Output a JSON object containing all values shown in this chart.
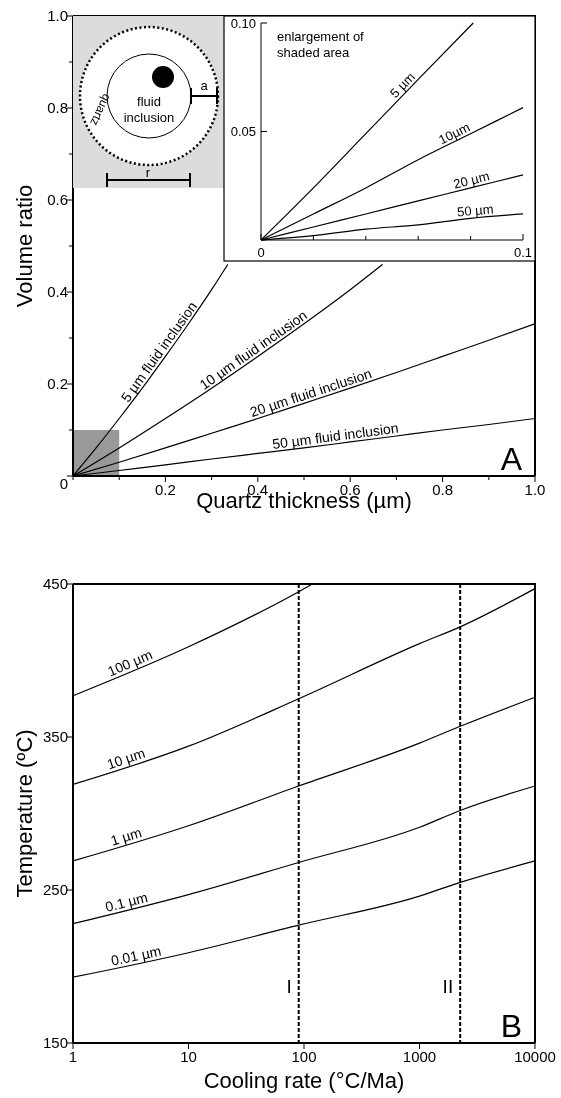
{
  "chart_data": [
    {
      "type": "line",
      "xlabel": "Quartz thickness (µm)",
      "ylabel": "Volume ratio",
      "xlim": [
        0,
        1
      ],
      "ylim": [
        0,
        1
      ],
      "xticks": [
        {
          "value": 0,
          "label": null
        },
        {
          "value": 0.1,
          "label": null
        },
        {
          "value": 0.2,
          "label": "0.2"
        },
        {
          "value": 0.3,
          "label": null
        },
        {
          "value": 0.4,
          "label": "0.4"
        },
        {
          "value": 0.5,
          "label": null
        },
        {
          "value": 0.6,
          "label": "0.6"
        },
        {
          "value": 0.7,
          "label": null
        },
        {
          "value": 0.8,
          "label": "0.8"
        },
        {
          "value": 0.9,
          "label": null
        },
        {
          "value": 1,
          "label": "1.0"
        }
      ],
      "yticks": [
        {
          "value": 0,
          "label": "0"
        },
        {
          "value": 0.1,
          "label": null
        },
        {
          "value": 0.2,
          "label": "0.2"
        },
        {
          "value": 0.3,
          "label": null
        },
        {
          "value": 0.4,
          "label": "0.4"
        },
        {
          "value": 0.5,
          "label": null
        },
        {
          "value": 0.6,
          "label": "0.6"
        },
        {
          "value": 0.7,
          "label": null
        },
        {
          "value": 0.8,
          "label": "0.8"
        },
        {
          "value": 0.9,
          "label": null
        },
        {
          "value": 1,
          "label": "1.0"
        }
      ],
      "annotations": [
        "A",
        "fluid inclusion",
        "quartz",
        "a",
        "r"
      ],
      "series": [
        {
          "type": "area",
          "color": "#999999",
          "x": [
            0,
            0.1
          ],
          "values": [
            0.1,
            0.1
          ]
        },
        {
          "name": "5 µm fluid inclusion",
          "color": "#000000",
          "x": [
            0,
            0.05,
            0.1,
            0.15,
            0.2,
            0.25,
            0.3,
            0.335
          ],
          "values": [
            0,
            0.061,
            0.125,
            0.191,
            0.26,
            0.331,
            0.405,
            0.46
          ]
        },
        {
          "name": "10 µm fluid inclusion",
          "color": "#000000",
          "x": [
            0,
            0.1,
            0.2,
            0.3,
            0.4,
            0.5,
            0.6,
            0.67
          ],
          "values": [
            0,
            0.061,
            0.125,
            0.191,
            0.26,
            0.331,
            0.405,
            0.46
          ]
        },
        {
          "name": "20 µm fluid inclusion",
          "color": "#000000",
          "x": [
            0,
            0.1,
            0.2,
            0.3,
            0.4,
            0.5,
            0.6,
            0.7,
            0.8,
            0.9,
            1
          ],
          "values": [
            0,
            0.03,
            0.061,
            0.093,
            0.125,
            0.158,
            0.191,
            0.225,
            0.26,
            0.295,
            0.331
          ]
        },
        {
          "name": "50 µm fluid inclusion",
          "color": "#000000",
          "x": [
            0,
            0.1,
            0.2,
            0.3,
            0.4,
            0.5,
            0.6,
            0.7,
            0.8,
            0.9,
            1
          ],
          "values": [
            0,
            0.012,
            0.024,
            0.037,
            0.049,
            0.061,
            0.074,
            0.087,
            0.1,
            0.112,
            0.125
          ]
        }
      ]
    },
    {
      "type": "line",
      "title": "enlargement of shaded area",
      "xlim": [
        0,
        0.1
      ],
      "ylim": [
        0,
        0.1
      ],
      "xticks": [
        {
          "value": 0,
          "label": "0"
        },
        {
          "value": 0.02,
          "label": null
        },
        {
          "value": 0.04,
          "label": null
        },
        {
          "value": 0.06,
          "label": null
        },
        {
          "value": 0.08,
          "label": null
        },
        {
          "value": 0.1,
          "label": "0.1"
        }
      ],
      "yticks": [
        {
          "value": 0,
          "label": null
        },
        {
          "value": 0.05,
          "label": "0.05"
        },
        {
          "value": 0.1,
          "label": "0.10"
        }
      ],
      "series": [
        {
          "name": "5 µm",
          "color": "#000000",
          "x": [
            0,
            0.02,
            0.04,
            0.06,
            0.081
          ],
          "values": [
            0,
            0.024,
            0.049,
            0.074,
            0.1
          ]
        },
        {
          "name": "10µm",
          "color": "#000000",
          "x": [
            0,
            0.02,
            0.04,
            0.06,
            0.08,
            0.1
          ],
          "values": [
            0,
            0.012,
            0.024,
            0.037,
            0.049,
            0.061
          ]
        },
        {
          "name": "20 µm",
          "color": "#000000",
          "x": [
            0,
            0.02,
            0.04,
            0.06,
            0.08,
            0.1
          ],
          "values": [
            0,
            0.006,
            0.012,
            0.018,
            0.024,
            0.03
          ]
        },
        {
          "name": "50 µm",
          "color": "#000000",
          "x": [
            0,
            0.02,
            0.04,
            0.06,
            0.08,
            0.1
          ],
          "values": [
            0,
            0.002,
            0.005,
            0.007,
            0.01,
            0.012
          ]
        }
      ]
    },
    {
      "type": "line",
      "xlabel": "Cooling rate (°C/Ma)",
      "ylabel": "Temperature (ºC)",
      "log": "x",
      "xlim": [
        1,
        10000
      ],
      "ylim": [
        150,
        450
      ],
      "xticks": [
        1,
        10,
        100,
        1000,
        10000
      ],
      "yticks": [
        150,
        250,
        350,
        450
      ],
      "annotations": [
        "B"
      ],
      "ref_lines": [
        {
          "axis": "x",
          "value": 90,
          "label": "I",
          "color": "#000000",
          "line_style": "dashed"
        },
        {
          "axis": "x",
          "value": 2250,
          "label": "II",
          "color": "#000000",
          "line_style": "dashed"
        }
      ],
      "series": [
        {
          "name": "100 µm",
          "color": "#000000",
          "x": [
            1,
            10,
            90,
            118
          ],
          "values": [
            377,
            409,
            445,
            450
          ]
        },
        {
          "name": "10 µm",
          "color": "#000000",
          "x": [
            1,
            10,
            90,
            1000,
            2250,
            10000
          ],
          "values": [
            319,
            344,
            375,
            411,
            422,
            447
          ]
        },
        {
          "name": "1 µm",
          "color": "#000000",
          "x": [
            1,
            10,
            90,
            1000,
            2250,
            10000
          ],
          "values": [
            269,
            292,
            318,
            346,
            357,
            376
          ]
        },
        {
          "name": "0.1 µm",
          "color": "#000000",
          "x": [
            1,
            10,
            90,
            1000,
            2250,
            10000
          ],
          "values": [
            228,
            247,
            268,
            291,
            302,
            318
          ]
        },
        {
          "name": "0.01 µm",
          "color": "#000000",
          "x": [
            1,
            10,
            90,
            1000,
            2250,
            10000
          ],
          "values": [
            193,
            209,
            227,
            246,
            255,
            269
          ]
        }
      ]
    }
  ]
}
